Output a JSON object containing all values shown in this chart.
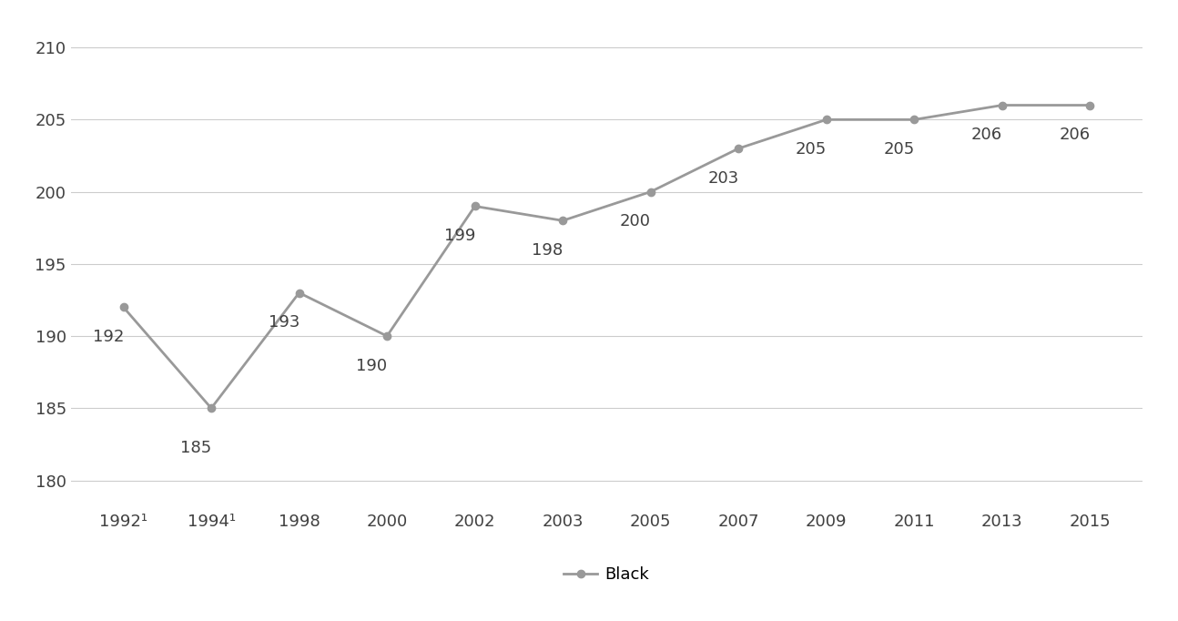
{
  "x_labels": [
    "1992¹",
    "1994¹",
    "1998",
    "2000",
    "2002",
    "2003",
    "2005",
    "2007",
    "2009",
    "2011",
    "2013",
    "2015"
  ],
  "x_positions": [
    0,
    1,
    2,
    3,
    4,
    5,
    6,
    7,
    8,
    9,
    10,
    11
  ],
  "y_values": [
    192,
    185,
    193,
    190,
    199,
    198,
    200,
    203,
    205,
    205,
    206,
    206
  ],
  "line_color": "#999999",
  "marker_color": "#999999",
  "marker_style": "o",
  "marker_size": 6,
  "line_width": 2.0,
  "ylim": [
    178,
    212
  ],
  "yticks": [
    180,
    185,
    190,
    195,
    200,
    205,
    210
  ],
  "background_color": "#ffffff",
  "grid_color": "#cccccc",
  "legend_label": "Black",
  "data_label_fontsize": 13,
  "tick_fontsize": 13,
  "legend_fontsize": 13,
  "label_configs": [
    [
      0,
      192,
      -0.35,
      -1.5,
      "left",
      "top"
    ],
    [
      1,
      185,
      -0.35,
      -2.2,
      "left",
      "top"
    ],
    [
      2,
      193,
      -0.35,
      -1.5,
      "left",
      "top"
    ],
    [
      3,
      190,
      -0.35,
      -1.5,
      "left",
      "top"
    ],
    [
      4,
      199,
      -0.35,
      -1.5,
      "left",
      "top"
    ],
    [
      5,
      198,
      -0.35,
      -1.5,
      "left",
      "top"
    ],
    [
      6,
      200,
      -0.35,
      -1.5,
      "left",
      "top"
    ],
    [
      7,
      203,
      -0.35,
      -1.5,
      "left",
      "top"
    ],
    [
      8,
      205,
      -0.35,
      -1.5,
      "left",
      "top"
    ],
    [
      9,
      205,
      -0.35,
      -1.5,
      "left",
      "top"
    ],
    [
      10,
      206,
      -0.35,
      -1.5,
      "left",
      "top"
    ],
    [
      11,
      206,
      -0.35,
      -1.5,
      "left",
      "top"
    ]
  ]
}
